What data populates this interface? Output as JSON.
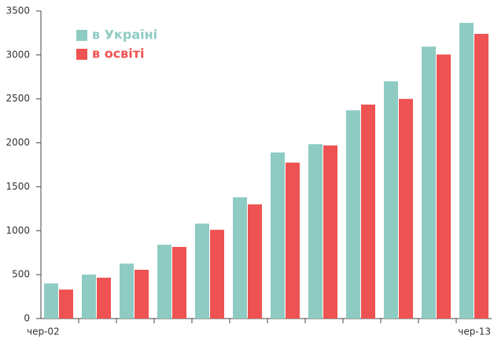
{
  "chart_data": {
    "type": "bar",
    "categories": [
      "чер-02",
      null,
      null,
      null,
      null,
      null,
      null,
      null,
      null,
      null,
      null,
      "чер-13"
    ],
    "series": [
      {
        "name": "в Україні",
        "color": "#8ecbc3",
        "values": [
          400,
          500,
          625,
          840,
          1080,
          1380,
          1890,
          1985,
          2370,
          2700,
          3095,
          3365
        ]
      },
      {
        "name": "в освіті",
        "color": "#ee5252",
        "values": [
          330,
          465,
          555,
          815,
          1010,
          1300,
          1775,
          1970,
          2435,
          2500,
          3005,
          3240
        ]
      }
    ],
    "ylim": [
      0,
      3500
    ],
    "yticks": [
      0,
      500,
      1000,
      1500,
      2000,
      2500,
      3000,
      3500
    ],
    "grid": false,
    "legend": "top-left"
  }
}
